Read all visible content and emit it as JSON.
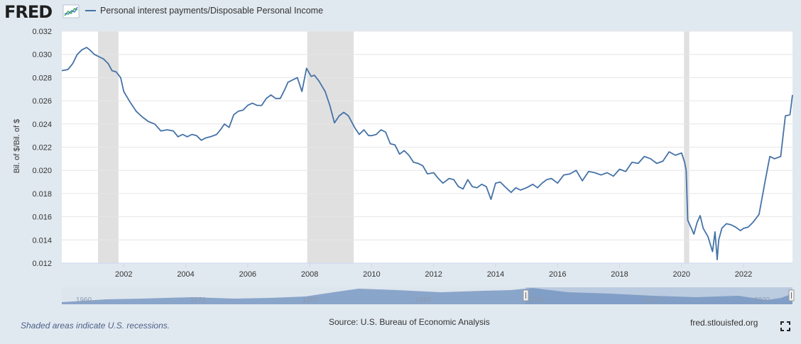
{
  "header": {
    "logo_text": "FRED",
    "logo_icon": "fred-chart-icon",
    "legend_label": "Personal interest payments/Disposable Personal Income",
    "series_color": "#4572a7"
  },
  "footer": {
    "note": "Shaded areas indicate U.S. recessions.",
    "source": "Source: U.S. Bureau of Economic Analysis",
    "url": "fred.stlouisfed.org",
    "fullscreen_icon": "fullscreen-icon"
  },
  "chart_data": {
    "type": "line",
    "title": "Personal interest payments/Disposable Personal Income",
    "xlabel": "",
    "ylabel": "Bil. of $/Bil. of $",
    "xlim": [
      2000.0,
      2023.58
    ],
    "ylim": [
      0.012,
      0.032
    ],
    "yticks": [
      0.012,
      0.014,
      0.016,
      0.018,
      0.02,
      0.022,
      0.024,
      0.026,
      0.028,
      0.03,
      0.032
    ],
    "ytick_labels": [
      "0.012",
      "0.014",
      "0.016",
      "0.018",
      "0.020",
      "0.022",
      "0.024",
      "0.026",
      "0.028",
      "0.030",
      "0.032"
    ],
    "xticks": [
      2002,
      2004,
      2006,
      2008,
      2010,
      2012,
      2014,
      2016,
      2018,
      2020,
      2022
    ],
    "xtick_labels": [
      "2002",
      "2004",
      "2006",
      "2008",
      "2010",
      "2012",
      "2014",
      "2016",
      "2018",
      "2020",
      "2022"
    ],
    "recessions": [
      [
        2001.17,
        2001.83
      ],
      [
        2007.92,
        2009.42
      ],
      [
        2020.08,
        2020.25
      ]
    ],
    "series": [
      {
        "name": "Personal interest payments/Disposable Personal Income",
        "color": "#4572a7",
        "x": [
          2000.0,
          2000.2,
          2000.35,
          2000.5,
          2000.65,
          2000.8,
          2000.9,
          2001.05,
          2001.2,
          2001.35,
          2001.5,
          2001.62,
          2001.75,
          2001.9,
          2002.0,
          2002.2,
          2002.4,
          2002.6,
          2002.8,
          2003.0,
          2003.2,
          2003.4,
          2003.6,
          2003.75,
          2003.9,
          2004.05,
          2004.2,
          2004.35,
          2004.5,
          2004.65,
          2004.8,
          2005.0,
          2005.15,
          2005.25,
          2005.4,
          2005.55,
          2005.7,
          2005.85,
          2006.0,
          2006.15,
          2006.3,
          2006.45,
          2006.6,
          2006.75,
          2006.9,
          2007.05,
          2007.2,
          2007.3,
          2007.45,
          2007.6,
          2007.75,
          2007.9,
          2008.05,
          2008.15,
          2008.3,
          2008.5,
          2008.65,
          2008.8,
          2008.95,
          2009.1,
          2009.25,
          2009.45,
          2009.6,
          2009.75,
          2009.9,
          2010.0,
          2010.15,
          2010.3,
          2010.45,
          2010.6,
          2010.75,
          2010.9,
          2011.05,
          2011.2,
          2011.35,
          2011.5,
          2011.65,
          2011.8,
          2012.0,
          2012.15,
          2012.3,
          2012.5,
          2012.65,
          2012.8,
          2012.95,
          2013.1,
          2013.25,
          2013.4,
          2013.55,
          2013.7,
          2013.85,
          2014.0,
          2014.15,
          2014.3,
          2014.5,
          2014.65,
          2014.8,
          2015.0,
          2015.2,
          2015.35,
          2015.5,
          2015.65,
          2015.8,
          2016.0,
          2016.2,
          2016.4,
          2016.6,
          2016.8,
          2017.0,
          2017.2,
          2017.4,
          2017.6,
          2017.8,
          2018.0,
          2018.2,
          2018.4,
          2018.6,
          2018.8,
          2019.0,
          2019.2,
          2019.4,
          2019.6,
          2019.8,
          2020.0,
          2020.1,
          2020.15,
          2020.2,
          2020.3,
          2020.4,
          2020.5,
          2020.6,
          2020.7,
          2020.85,
          2021.0,
          2021.08,
          2021.15,
          2021.2,
          2021.3,
          2021.45,
          2021.6,
          2021.75,
          2021.9,
          2022.0,
          2022.15,
          2022.3,
          2022.5,
          2022.7,
          2022.85,
          2023.0,
          2023.2,
          2023.35,
          2023.5,
          2023.58
        ],
        "values": [
          0.0286,
          0.0287,
          0.0292,
          0.03,
          0.0304,
          0.0306,
          0.0304,
          0.03,
          0.0298,
          0.0296,
          0.0292,
          0.0286,
          0.0285,
          0.028,
          0.0268,
          0.0259,
          0.0251,
          0.0246,
          0.0242,
          0.024,
          0.0234,
          0.0235,
          0.0234,
          0.0229,
          0.0231,
          0.0229,
          0.0231,
          0.023,
          0.0226,
          0.0228,
          0.0229,
          0.0231,
          0.0236,
          0.024,
          0.0237,
          0.0248,
          0.0251,
          0.0252,
          0.0256,
          0.0258,
          0.0256,
          0.0256,
          0.0262,
          0.0265,
          0.0262,
          0.0262,
          0.027,
          0.0276,
          0.0278,
          0.028,
          0.0268,
          0.0288,
          0.0281,
          0.0282,
          0.0277,
          0.0268,
          0.0256,
          0.0241,
          0.0247,
          0.025,
          0.0247,
          0.0237,
          0.0231,
          0.0235,
          0.023,
          0.023,
          0.0231,
          0.0235,
          0.0233,
          0.0223,
          0.0222,
          0.0214,
          0.0217,
          0.0213,
          0.0207,
          0.0206,
          0.0204,
          0.0197,
          0.0198,
          0.0193,
          0.0189,
          0.0193,
          0.0192,
          0.0186,
          0.0184,
          0.0192,
          0.0186,
          0.0185,
          0.0188,
          0.0186,
          0.0175,
          0.0189,
          0.019,
          0.0186,
          0.0181,
          0.0185,
          0.0183,
          0.0185,
          0.0188,
          0.0185,
          0.0189,
          0.0192,
          0.0193,
          0.0189,
          0.0196,
          0.0197,
          0.02,
          0.0191,
          0.0199,
          0.0198,
          0.0196,
          0.0198,
          0.0195,
          0.0201,
          0.0199,
          0.0207,
          0.0206,
          0.0212,
          0.021,
          0.0206,
          0.0208,
          0.0216,
          0.0213,
          0.0215,
          0.0207,
          0.02,
          0.0157,
          0.0151,
          0.0145,
          0.0155,
          0.0161,
          0.015,
          0.0143,
          0.013,
          0.0147,
          0.0123,
          0.014,
          0.015,
          0.0154,
          0.0153,
          0.0151,
          0.0148,
          0.015,
          0.0151,
          0.0155,
          0.0162,
          0.0191,
          0.0212,
          0.021,
          0.0212,
          0.0247,
          0.0248,
          0.0265
        ]
      }
    ],
    "navigator": {
      "tick_labels": [
        "1960",
        "1970",
        "1980",
        "1990",
        "2000",
        "2010",
        "2020"
      ]
    }
  }
}
